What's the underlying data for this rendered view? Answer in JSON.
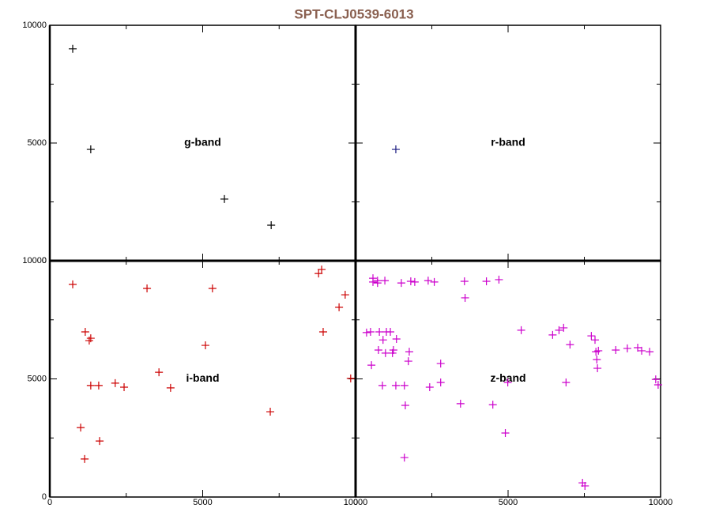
{
  "title": "SPT-CLJ0539-6013",
  "chart_data": [
    {
      "type": "scatter",
      "label": "g-band",
      "color": "#000000",
      "xlim": [
        0,
        10000
      ],
      "ylim": [
        0,
        10000
      ],
      "xticks": [
        0,
        5000,
        10000
      ],
      "yticks": [
        0,
        5000,
        10000
      ],
      "minorticks": [
        2500,
        7500
      ],
      "xticklabels": false,
      "yticklabels": true,
      "x": [
        750,
        1340,
        5710,
        7240
      ],
      "y": [
        9000,
        4730,
        2620,
        1510
      ]
    },
    {
      "type": "scatter",
      "label": "r-band",
      "color": "#1a1a80",
      "xlim": [
        0,
        10000
      ],
      "ylim": [
        0,
        10000
      ],
      "xticks": [
        0,
        5000,
        10000
      ],
      "yticks": [
        0,
        5000,
        10000
      ],
      "minorticks": [
        2500,
        7500
      ],
      "xticklabels": false,
      "yticklabels": false,
      "x": [
        1320
      ],
      "y": [
        4730
      ]
    },
    {
      "type": "scatter",
      "label": "i-band",
      "color": "#cc0000",
      "xlim": [
        0,
        10000
      ],
      "ylim": [
        0,
        10000
      ],
      "xticks": [
        0,
        5000,
        10000
      ],
      "yticks": [
        0,
        5000,
        10000
      ],
      "minorticks": [
        2500,
        7500
      ],
      "xticklabels": true,
      "yticklabels": true,
      "x": [
        750,
        3180,
        5320,
        8890,
        8790,
        9660,
        9460,
        8940,
        1160,
        1290,
        1340,
        5090,
        3570,
        9840,
        1340,
        1600,
        2140,
        2430,
        3950,
        7210,
        1010,
        1630,
        1140
      ],
      "y": [
        9000,
        8830,
        8830,
        9630,
        9460,
        8560,
        8030,
        6990,
        6990,
        6620,
        6720,
        6420,
        5280,
        5020,
        4720,
        4720,
        4820,
        4650,
        4620,
        3610,
        2940,
        2370,
        1610
      ]
    },
    {
      "type": "scatter",
      "label": "z-band",
      "color": "#cc00cc",
      "xlim": [
        0,
        10000
      ],
      "ylim": [
        0,
        10000
      ],
      "xticks": [
        0,
        5000,
        10000
      ],
      "yticks": [
        0,
        5000,
        10000
      ],
      "minorticks": [
        2500,
        7500
      ],
      "xticklabels": true,
      "yticklabels": false,
      "x": [
        570,
        720,
        570,
        720,
        960,
        1500,
        1810,
        1940,
        2380,
        2580,
        3570,
        4290,
        4700,
        3590,
        360,
        490,
        780,
        1010,
        1140,
        1340,
        900,
        750,
        980,
        1210,
        1240,
        520,
        1760,
        1730,
        2790,
        880,
        1320,
        1600,
        2430,
        2790,
        1630,
        3440,
        4500,
        4910,
        1600,
        5430,
        6460,
        6670,
        6820,
        7030,
        7730,
        7850,
        7880,
        7960,
        7910,
        7930,
        8530,
        8910,
        9250,
        9380,
        9640,
        9840,
        9920,
        6900,
        7440,
        7520,
        4990
      ],
      "y": [
        9260,
        9160,
        9100,
        9060,
        9160,
        9060,
        9130,
        9100,
        9160,
        9100,
        9130,
        9130,
        9200,
        8430,
        6960,
        6990,
        6990,
        6990,
        6990,
        6690,
        6650,
        6220,
        6090,
        6090,
        6220,
        5580,
        6150,
        5750,
        5650,
        4720,
        4720,
        4720,
        4650,
        4850,
        3880,
        3950,
        3910,
        2710,
        1670,
        7060,
        6860,
        7060,
        7160,
        6450,
        6820,
        6650,
        6150,
        6190,
        5820,
        5450,
        6220,
        6290,
        6320,
        6190,
        6150,
        4980,
        4750,
        4850,
        600,
        470,
        4850
      ]
    }
  ]
}
